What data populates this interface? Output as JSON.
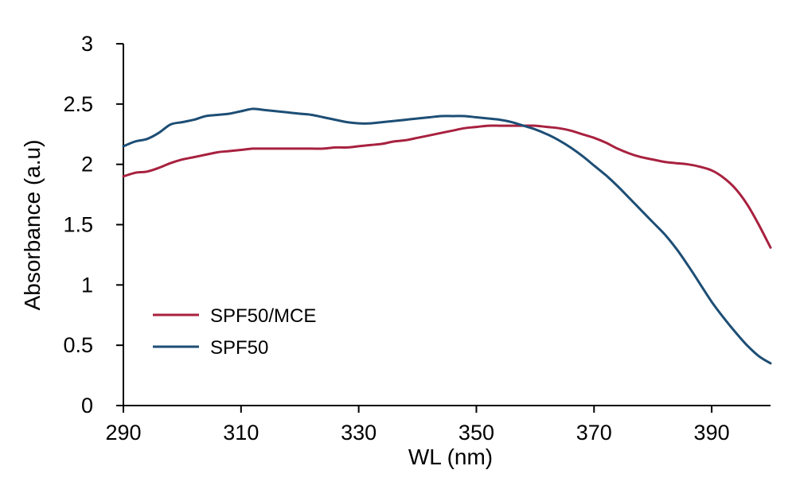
{
  "chart_data": {
    "type": "line",
    "title": "",
    "xlabel": "WL (nm)",
    "ylabel": "Absorbance (a.u)",
    "xlim": [
      290,
      400
    ],
    "ylim": [
      0,
      3
    ],
    "x_ticks": [
      290,
      310,
      330,
      350,
      370,
      390
    ],
    "y_ticks": [
      0,
      0.5,
      1,
      1.5,
      2,
      2.5,
      3
    ],
    "y_tick_labels": [
      "0",
      "0.5",
      "1",
      "1.5",
      "2",
      "2.5",
      "3"
    ],
    "grid": false,
    "legend_position": "bottom-left",
    "series": [
      {
        "name": "SPF50/MCE",
        "color": "#a8213f",
        "x": [
          290,
          292,
          294,
          296,
          298,
          300,
          302,
          304,
          306,
          308,
          310,
          312,
          314,
          316,
          318,
          320,
          322,
          324,
          326,
          328,
          330,
          332,
          334,
          336,
          338,
          340,
          342,
          344,
          346,
          348,
          350,
          352,
          354,
          356,
          358,
          360,
          362,
          364,
          366,
          368,
          370,
          372,
          374,
          376,
          378,
          380,
          382,
          384,
          386,
          388,
          390,
          392,
          394,
          396,
          398,
          400
        ],
        "y": [
          1.9,
          1.93,
          1.94,
          1.97,
          2.01,
          2.04,
          2.06,
          2.08,
          2.1,
          2.11,
          2.12,
          2.13,
          2.13,
          2.13,
          2.13,
          2.13,
          2.13,
          2.13,
          2.14,
          2.14,
          2.15,
          2.16,
          2.17,
          2.19,
          2.2,
          2.22,
          2.24,
          2.26,
          2.28,
          2.3,
          2.31,
          2.32,
          2.32,
          2.32,
          2.32,
          2.32,
          2.31,
          2.3,
          2.28,
          2.25,
          2.22,
          2.18,
          2.13,
          2.09,
          2.06,
          2.04,
          2.02,
          2.01,
          2.0,
          1.98,
          1.95,
          1.89,
          1.8,
          1.67,
          1.5,
          1.31
        ]
      },
      {
        "name": "SPF50",
        "color": "#1d4e75",
        "x": [
          290,
          292,
          294,
          296,
          298,
          300,
          302,
          304,
          306,
          308,
          310,
          312,
          314,
          316,
          318,
          320,
          322,
          324,
          326,
          328,
          330,
          332,
          334,
          336,
          338,
          340,
          342,
          344,
          346,
          348,
          350,
          352,
          354,
          356,
          358,
          360,
          362,
          364,
          366,
          368,
          370,
          372,
          374,
          376,
          378,
          380,
          382,
          384,
          386,
          388,
          390,
          392,
          394,
          396,
          398,
          400
        ],
        "y": [
          2.15,
          2.19,
          2.21,
          2.26,
          2.33,
          2.35,
          2.37,
          2.4,
          2.41,
          2.42,
          2.44,
          2.46,
          2.45,
          2.44,
          2.43,
          2.42,
          2.41,
          2.39,
          2.37,
          2.35,
          2.34,
          2.34,
          2.35,
          2.36,
          2.37,
          2.38,
          2.39,
          2.4,
          2.4,
          2.4,
          2.39,
          2.38,
          2.37,
          2.35,
          2.32,
          2.29,
          2.25,
          2.2,
          2.14,
          2.07,
          1.99,
          1.91,
          1.82,
          1.72,
          1.62,
          1.52,
          1.42,
          1.3,
          1.16,
          1.01,
          0.86,
          0.73,
          0.61,
          0.5,
          0.41,
          0.35
        ]
      }
    ]
  }
}
